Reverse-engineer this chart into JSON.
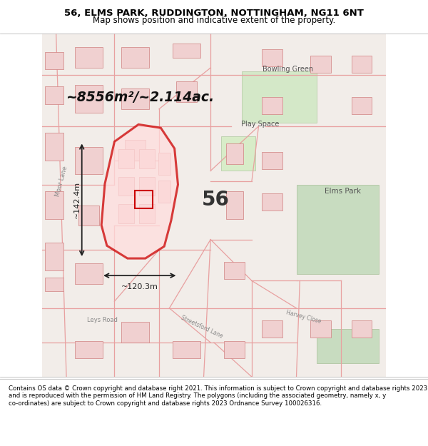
{
  "title_line1": "56, ELMS PARK, RUDDINGTON, NOTTINGHAM, NG11 6NT",
  "title_line2": "Map shows position and indicative extent of the property.",
  "area_text": "~8556m²/~2.114ac.",
  "label_56": "56",
  "dim_height": "~142.4m",
  "dim_width": "~120.3m",
  "label_bowling": "Bowling Green",
  "label_play": "Play Space",
  "label_elms": "Elms Park",
  "label_moor": "Moor Lane",
  "label_leys": "Leys Road",
  "label_harvey": "Harvey Close",
  "label_streetsford": "Streetsford Lane",
  "footer_text": "Contains OS data © Crown copyright and database right 2021. This information is subject to Crown copyright and database rights 2023 and is reproduced with the permission of HM Land Registry. The polygons (including the associated geometry, namely x, y co-ordinates) are subject to Crown copyright and database rights 2023 Ordnance Survey 100026316.",
  "map_bg": "#f2ede9",
  "footer_bg": "#ffffff",
  "title_bg": "#ffffff",
  "red_outline": "#cc0000",
  "red_fill": "#ffdddd",
  "green_fill": "#c8dcc0",
  "street_color": "#e8a0a0",
  "fig_width": 6.0,
  "fig_height": 6.25
}
